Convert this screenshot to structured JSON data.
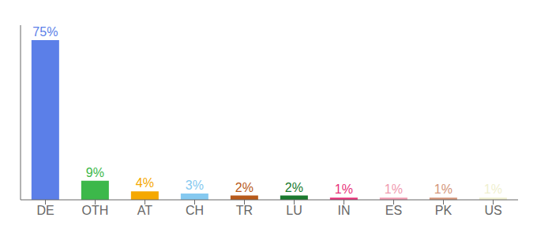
{
  "chart_data": {
    "type": "bar",
    "categories": [
      "DE",
      "OTH",
      "AT",
      "CH",
      "TR",
      "LU",
      "IN",
      "ES",
      "PK",
      "US"
    ],
    "values": [
      75,
      9,
      4,
      3,
      2,
      2,
      1,
      1,
      1,
      1
    ],
    "value_labels": [
      "75%",
      "9%",
      "4%",
      "3%",
      "2%",
      "2%",
      "1%",
      "1%",
      "1%",
      "1%"
    ],
    "data_labels": true,
    "colors": [
      "#5b7fe8",
      "#3cb84a",
      "#f5a800",
      "#85c9f0",
      "#b85a1a",
      "#1a7a2e",
      "#e8317a",
      "#f09ab0",
      "#d4957a",
      "#f0f0d0"
    ],
    "ylim": [
      0,
      82
    ],
    "tick_labels": "x",
    "grid": false
  }
}
